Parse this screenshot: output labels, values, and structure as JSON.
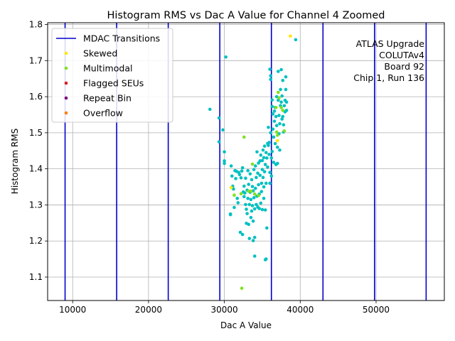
{
  "chart_data": {
    "type": "scatter",
    "title": "Histogram RMS vs Dac A Value for Channel 4 Zoomed",
    "xlabel": "Dac A Value",
    "ylabel": "Histogram RMS",
    "xlim": [
      6700,
      59000
    ],
    "ylim": [
      1.035,
      1.805
    ],
    "xticks": [
      10000,
      20000,
      30000,
      40000,
      50000
    ],
    "yticks": [
      1.1,
      1.2,
      1.3,
      1.4,
      1.5,
      1.6,
      1.7,
      1.8
    ],
    "xtick_labels": [
      "10000",
      "20000",
      "30000",
      "40000",
      "50000"
    ],
    "ytick_labels": [
      "1.1",
      "1.2",
      "1.3",
      "1.4",
      "1.5",
      "1.6",
      "1.7",
      "1.8"
    ],
    "grid": true,
    "legend_position": "top-left",
    "mdac_transitions": [
      9000,
      15800,
      22600,
      29400,
      36200,
      43000,
      49800,
      56600
    ],
    "legend": [
      {
        "label": "MDAC Transitions",
        "kind": "line",
        "color": "#0000cc"
      },
      {
        "label": "Skewed",
        "kind": "dot",
        "color": "#ffe600"
      },
      {
        "label": "Multimodal",
        "kind": "dot",
        "color": "#80e020"
      },
      {
        "label": "Flagged SEUs",
        "kind": "dot",
        "color": "#d42020"
      },
      {
        "label": "Repeat Bin",
        "kind": "dot",
        "color": "#800080"
      },
      {
        "label": "Overflow",
        "kind": "dot",
        "color": "#ff7f0e"
      }
    ],
    "annotation": [
      "ATLAS Upgrade",
      "COLUTAv4",
      "Board 92",
      "Chip 1, Run 136"
    ],
    "series": [
      {
        "category": "normal",
        "color": "#00c0c0",
        "points": [
          [
            28100,
            1.565
          ],
          [
            29300,
            1.541
          ],
          [
            29300,
            1.475
          ],
          [
            29800,
            1.508
          ],
          [
            30000,
            1.447
          ],
          [
            30000,
            1.422
          ],
          [
            30000,
            1.415
          ],
          [
            30200,
            1.71
          ],
          [
            30800,
            1.275
          ],
          [
            30800,
            1.273
          ],
          [
            30900,
            1.408
          ],
          [
            31000,
            1.38
          ],
          [
            31100,
            1.352
          ],
          [
            31200,
            1.344
          ],
          [
            31300,
            1.293
          ],
          [
            31400,
            1.395
          ],
          [
            31500,
            1.373
          ],
          [
            31600,
            1.393
          ],
          [
            31700,
            1.318
          ],
          [
            31800,
            1.306
          ],
          [
            31900,
            1.39
          ],
          [
            32000,
            1.384
          ],
          [
            32100,
            1.224
          ],
          [
            32200,
            1.375
          ],
          [
            32300,
            1.394
          ],
          [
            32400,
            1.403
          ],
          [
            32400,
            1.218
          ],
          [
            32500,
            1.336
          ],
          [
            32600,
            1.323
          ],
          [
            32600,
            1.352
          ],
          [
            32700,
            1.333
          ],
          [
            32800,
            1.374
          ],
          [
            32800,
            1.301
          ],
          [
            32900,
            1.288
          ],
          [
            32900,
            1.249
          ],
          [
            33000,
            1.341
          ],
          [
            33000,
            1.276
          ],
          [
            33100,
            1.395
          ],
          [
            33100,
            1.318
          ],
          [
            33200,
            1.246
          ],
          [
            33200,
            1.357
          ],
          [
            33300,
            1.301
          ],
          [
            33300,
            1.207
          ],
          [
            33400,
            1.335
          ],
          [
            33400,
            1.386
          ],
          [
            33500,
            1.265
          ],
          [
            33500,
            1.315
          ],
          [
            33600,
            1.283
          ],
          [
            33600,
            1.37
          ],
          [
            33700,
            1.351
          ],
          [
            33700,
            1.298
          ],
          [
            33800,
            1.201
          ],
          [
            33800,
            1.255
          ],
          [
            33800,
            1.339
          ],
          [
            33900,
            1.398
          ],
          [
            33900,
            1.32
          ],
          [
            34000,
            1.289
          ],
          [
            34000,
            1.21
          ],
          [
            34000,
            1.158
          ],
          [
            34100,
            1.408
          ],
          [
            34100,
            1.346
          ],
          [
            34200,
            1.301
          ],
          [
            34200,
            1.376
          ],
          [
            34300,
            1.324
          ],
          [
            34300,
            1.447
          ],
          [
            34400,
            1.388
          ],
          [
            34400,
            1.294
          ],
          [
            34500,
            1.416
          ],
          [
            34500,
            1.356
          ],
          [
            34600,
            1.29
          ],
          [
            34600,
            1.33
          ],
          [
            34700,
            1.422
          ],
          [
            34700,
            1.382
          ],
          [
            34800,
            1.305
          ],
          [
            34800,
            1.438
          ],
          [
            34900,
            1.36
          ],
          [
            34900,
            1.337
          ],
          [
            35000,
            1.398
          ],
          [
            35000,
            1.423
          ],
          [
            35000,
            1.287
          ],
          [
            35100,
            1.452
          ],
          [
            35100,
            1.376
          ],
          [
            35200,
            1.35
          ],
          [
            35200,
            1.431
          ],
          [
            35200,
            1.318
          ],
          [
            35300,
            1.392
          ],
          [
            35300,
            1.463
          ],
          [
            35400,
            1.286
          ],
          [
            35400,
            1.412
          ],
          [
            35400,
            1.148
          ],
          [
            35500,
            1.445
          ],
          [
            35500,
            1.15
          ],
          [
            35500,
            1.36
          ],
          [
            35600,
            1.236
          ],
          [
            35600,
            1.43
          ],
          [
            35700,
            1.47
          ],
          [
            35700,
            1.405
          ],
          [
            35800,
            1.465
          ],
          [
            35800,
            1.515
          ],
          [
            35900,
            1.44
          ],
          [
            35900,
            1.473
          ],
          [
            36000,
            1.39
          ],
          [
            36000,
            1.36
          ],
          [
            36000,
            1.676
          ],
          [
            36100,
            1.658
          ],
          [
            36100,
            1.648
          ],
          [
            36100,
            1.5
          ],
          [
            36200,
            1.43
          ],
          [
            36200,
            1.38
          ],
          [
            36300,
            1.573
          ],
          [
            36300,
            1.591
          ],
          [
            36300,
            1.448
          ],
          [
            36400,
            1.51
          ],
          [
            36400,
            1.552
          ],
          [
            36500,
            1.418
          ],
          [
            36500,
            1.488
          ],
          [
            36600,
            1.56
          ],
          [
            36600,
            1.532
          ],
          [
            36700,
            1.57
          ],
          [
            36700,
            1.47
          ],
          [
            36800,
            1.545
          ],
          [
            36800,
            1.412
          ],
          [
            36900,
            1.52
          ],
          [
            36900,
            1.6
          ],
          [
            37000,
            1.415
          ],
          [
            37000,
            1.46
          ],
          [
            37100,
            1.67
          ],
          [
            37100,
            1.59
          ],
          [
            37200,
            1.548
          ],
          [
            37200,
            1.497
          ],
          [
            37300,
            1.525
          ],
          [
            37300,
            1.452
          ],
          [
            37400,
            1.62
          ],
          [
            37400,
            1.575
          ],
          [
            37500,
            1.675
          ],
          [
            37500,
            1.585
          ],
          [
            37600,
            1.602
          ],
          [
            37600,
            1.538
          ],
          [
            37700,
            1.645
          ],
          [
            37700,
            1.545
          ],
          [
            37800,
            1.522
          ],
          [
            37800,
            1.502
          ],
          [
            37900,
            1.575
          ],
          [
            38000,
            1.59
          ],
          [
            38000,
            1.558
          ],
          [
            38100,
            1.655
          ],
          [
            38100,
            1.62
          ],
          [
            38200,
            1.585
          ],
          [
            38200,
            1.562
          ],
          [
            39400,
            1.758
          ]
        ]
      },
      {
        "category": "Multimodal",
        "color": "#80e020",
        "points": [
          [
            31300,
            1.327
          ],
          [
            32200,
            1.331
          ],
          [
            32300,
            1.069
          ],
          [
            32600,
            1.488
          ],
          [
            33200,
            1.338
          ],
          [
            33500,
            1.338
          ],
          [
            33700,
            1.413
          ],
          [
            34000,
            1.33
          ],
          [
            34500,
            1.326
          ],
          [
            36800,
            1.57
          ],
          [
            36900,
            1.502
          ],
          [
            37000,
            1.493
          ],
          [
            37100,
            1.612
          ],
          [
            37200,
            1.597
          ],
          [
            37500,
            1.57
          ],
          [
            37700,
            1.562
          ],
          [
            37900,
            1.505
          ]
        ]
      },
      {
        "category": "Skewed",
        "color": "#ffe600",
        "points": [
          [
            30900,
            1.348
          ],
          [
            38700,
            1.768
          ],
          [
            37000,
            1.478
          ]
        ]
      }
    ]
  }
}
